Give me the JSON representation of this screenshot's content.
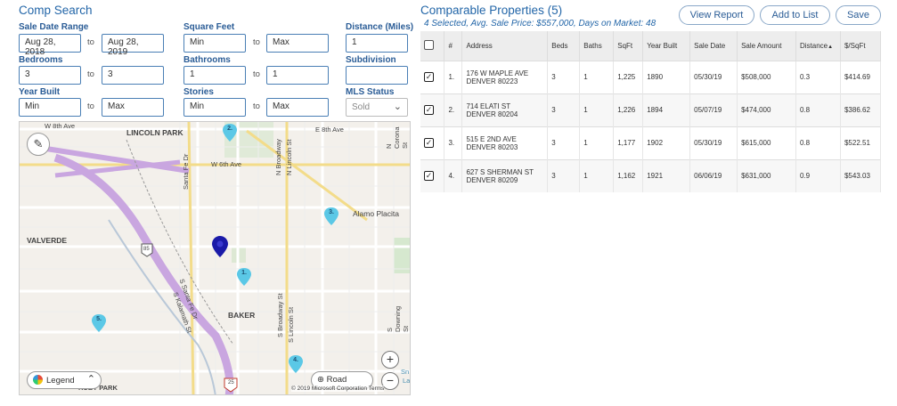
{
  "comp_search": {
    "title": "Comp Search",
    "sale_date_range": {
      "label": "Sale Date Range",
      "from": "Aug 28, 2018",
      "to": "Aug 28, 2019"
    },
    "square_feet": {
      "label": "Square Feet",
      "min_placeholder": "Min",
      "max_placeholder": "Max"
    },
    "distance": {
      "label": "Distance (Miles)",
      "value": "1"
    },
    "bedrooms": {
      "label": "Bedrooms",
      "from": "3",
      "to": "3"
    },
    "bathrooms": {
      "label": "Bathrooms",
      "from": "1",
      "to": "1"
    },
    "subdivision": {
      "label": "Subdivision",
      "value": ""
    },
    "year_built": {
      "label": "Year Built",
      "min_placeholder": "Min",
      "max_placeholder": "Max"
    },
    "stories": {
      "label": "Stories",
      "min_placeholder": "Min",
      "max_placeholder": "Max"
    },
    "mls_status": {
      "label": "MLS Status",
      "value": "Sold"
    },
    "to_label": "to"
  },
  "map": {
    "labels": {
      "lincoln_park": "LINCOLN PARK",
      "valverde": "VALVERDE",
      "baker": "BAKER",
      "alamo_placita": "Alamo Placita",
      "w8th": "W 8th Ave",
      "e8th": "E 8th Ave",
      "w6th": "W 6th Ave",
      "santa_fe": "Santa Fe Dr",
      "n_broadway": "N Broadway",
      "n_lincoln": "N Lincoln St",
      "s_broadway": "S Broadway St",
      "s_lincoln": "S Lincoln St",
      "s_downing": "S Downing St",
      "s_santa_fe": "S Santa Fe Dr",
      "s_kalamath": "S Kalamath St",
      "n_corona": "N Corona St",
      "ruby_park": "RUBY PARK",
      "hwy85": "85",
      "i25": "25",
      "sn": "Sn",
      "la": "La"
    },
    "pins": [
      "1.",
      "2.",
      "3.",
      "4.",
      "5."
    ],
    "legend_label": "Legend",
    "road_label": "Road",
    "zoom_in": "+",
    "zoom_out": "−",
    "copyright": "© 2019 Microsoft Corporation",
    "terms": "Terms"
  },
  "comparables": {
    "title": "Comparable Properties (5)",
    "summary": "4 Selected, Avg. Sale Price: $557,000, Days on Market: 48",
    "buttons": {
      "view_report": "View Report",
      "add_to_list": "Add to List",
      "save": "Save"
    },
    "columns": [
      "#",
      "Address",
      "Beds",
      "Baths",
      "SqFt",
      "Year Built",
      "Sale Date",
      "Sale Amount",
      "Distance",
      "$/SqFt"
    ],
    "sort_indicator": "▲",
    "rows": [
      {
        "num": "1.",
        "addr1": "176 W MAPLE AVE",
        "addr2": "DENVER 80223",
        "beds": "3",
        "baths": "1",
        "sqft": "1,225",
        "year": "1890",
        "sale_date": "05/30/19",
        "amount": "$508,000",
        "distance": "0.3",
        "per_sqft": "$414.69",
        "checked": "✓"
      },
      {
        "num": "2.",
        "addr1": "714 ELATI ST",
        "addr2": "DENVER 80204",
        "beds": "3",
        "baths": "1",
        "sqft": "1,226",
        "year": "1894",
        "sale_date": "05/07/19",
        "amount": "$474,000",
        "distance": "0.8",
        "per_sqft": "$386.62",
        "checked": "✓"
      },
      {
        "num": "3.",
        "addr1": "515 E 2ND AVE",
        "addr2": "DENVER 80203",
        "beds": "3",
        "baths": "1",
        "sqft": "1,177",
        "year": "1902",
        "sale_date": "05/30/19",
        "amount": "$615,000",
        "distance": "0.8",
        "per_sqft": "$522.51",
        "checked": "✓"
      },
      {
        "num": "4.",
        "addr1": "627 S SHERMAN ST",
        "addr2": "DENVER 80209",
        "beds": "3",
        "baths": "1",
        "sqft": "1,162",
        "year": "1921",
        "sale_date": "06/06/19",
        "amount": "$631,000",
        "distance": "0.9",
        "per_sqft": "$543.03",
        "checked": "✓"
      }
    ]
  },
  "colors": {
    "accent": "#2366a8",
    "pin": "#5bc8e6",
    "subject_pin": "#1a1aa8",
    "highway": "#c9a6e0"
  },
  "icons": {
    "edit": "pencil-icon",
    "legend": "legend-icon",
    "road": "globe-icon",
    "select_arrow": "chevron-down-icon"
  }
}
